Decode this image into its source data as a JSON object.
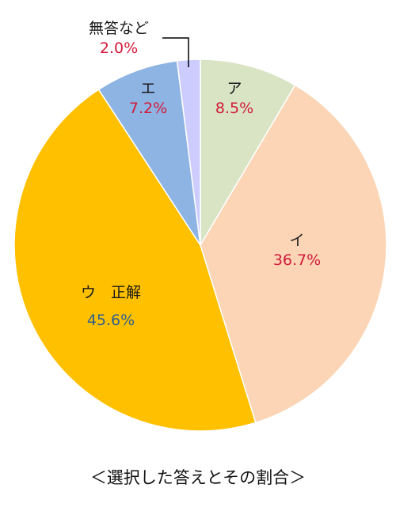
{
  "chart_data": {
    "type": "pie",
    "title": "",
    "caption": "＜選択した答えとその割合＞",
    "slices": [
      {
        "category": "ア",
        "value": 8.5,
        "label": "8.5%",
        "color": "#d9e4c4"
      },
      {
        "category": "イ",
        "value": 36.7,
        "label": "36.7%",
        "color": "#fbd5b5"
      },
      {
        "category": "ウ　正解",
        "value": 45.6,
        "label": "45.6%",
        "color": "#ffc000"
      },
      {
        "category": "エ",
        "value": 7.2,
        "label": "7.2%",
        "color": "#8eb4e3"
      },
      {
        "category": "無答など",
        "value": 2.0,
        "label": "2.0%",
        "color": "#ccccff"
      }
    ],
    "start": "12 o'clock",
    "direction": "clockwise",
    "legend": "none"
  },
  "colors": {
    "pct_text": "#d11a3a",
    "correct_pct_text": "#2e5f8a",
    "slice_border": "#ffffff"
  }
}
